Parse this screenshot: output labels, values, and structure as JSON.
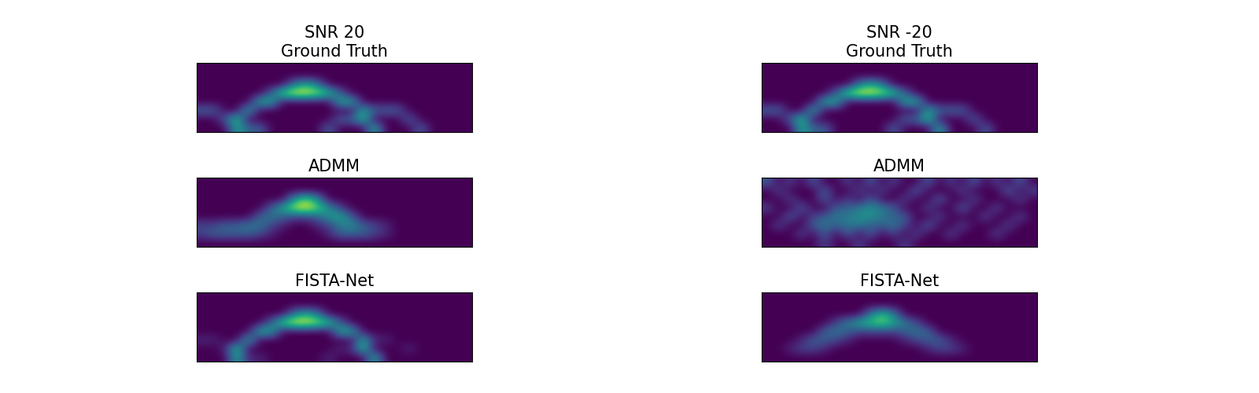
{
  "chart_data": [
    {
      "type": "heatmap",
      "title": "SNR 20\nGround Truth",
      "tick_labels": false,
      "color_range": [
        0,
        1
      ],
      "cells": [
        [
          0,
          0,
          0,
          0,
          0,
          0,
          0,
          0,
          0,
          0,
          0,
          0,
          0,
          0,
          0,
          0,
          0,
          0,
          0,
          0,
          0,
          0,
          0,
          0
        ],
        [
          0,
          0,
          0,
          0,
          0,
          0,
          0,
          0,
          0,
          0,
          0,
          0,
          0,
          0,
          0,
          0,
          0,
          0,
          0,
          0,
          0,
          0,
          0,
          0
        ],
        [
          0,
          0,
          0,
          0,
          0,
          0,
          0,
          0,
          0.4,
          0.6,
          0.4,
          0,
          0,
          0,
          0,
          0,
          0,
          0,
          0,
          0,
          0,
          0,
          0,
          0
        ],
        [
          0,
          0,
          0,
          0,
          0,
          0,
          0.3,
          0.8,
          1,
          1,
          0.9,
          0.7,
          0.3,
          0,
          0,
          0,
          0,
          0,
          0,
          0,
          0,
          0,
          0,
          0
        ],
        [
          0,
          0,
          0,
          0,
          0,
          0.6,
          0.6,
          0,
          0,
          0,
          0,
          0,
          0.6,
          0.6,
          0,
          0,
          0,
          0,
          0,
          0,
          0,
          0,
          0,
          0
        ],
        [
          0.3,
          0.3,
          0,
          0,
          0.6,
          0,
          0,
          0,
          0,
          0,
          0,
          0,
          0,
          0,
          0.6,
          0.3,
          0.3,
          0.3,
          0,
          0,
          0,
          0,
          0,
          0
        ],
        [
          0,
          0,
          0.3,
          0.7,
          0,
          0,
          0,
          0,
          0,
          0,
          0,
          0,
          0.3,
          0.3,
          0.7,
          0,
          0,
          0,
          0.3,
          0,
          0,
          0,
          0,
          0
        ],
        [
          0,
          0,
          0,
          0.6,
          0.3,
          0.3,
          0,
          0,
          0,
          0,
          0,
          0.3,
          0,
          0,
          0,
          0.6,
          0,
          0,
          0,
          0.3,
          0,
          0,
          0,
          0
        ]
      ]
    },
    {
      "type": "heatmap",
      "title": "SNR -20\nGround Truth",
      "tick_labels": false,
      "color_range": [
        0,
        1
      ],
      "cells": [
        [
          0,
          0,
          0,
          0,
          0,
          0,
          0,
          0,
          0,
          0,
          0,
          0,
          0,
          0,
          0,
          0,
          0,
          0,
          0,
          0,
          0,
          0,
          0,
          0
        ],
        [
          0,
          0,
          0,
          0,
          0,
          0,
          0,
          0,
          0,
          0,
          0,
          0,
          0,
          0,
          0,
          0,
          0,
          0,
          0,
          0,
          0,
          0,
          0,
          0
        ],
        [
          0,
          0,
          0,
          0,
          0,
          0,
          0,
          0,
          0.4,
          0.6,
          0.4,
          0,
          0,
          0,
          0,
          0,
          0,
          0,
          0,
          0,
          0,
          0,
          0,
          0
        ],
        [
          0,
          0,
          0,
          0,
          0,
          0,
          0.3,
          0.8,
          1,
          1,
          0.9,
          0.7,
          0.3,
          0,
          0,
          0,
          0,
          0,
          0,
          0,
          0,
          0,
          0,
          0
        ],
        [
          0,
          0,
          0,
          0,
          0,
          0.6,
          0.6,
          0,
          0,
          0,
          0,
          0,
          0.6,
          0.6,
          0,
          0,
          0,
          0,
          0,
          0,
          0,
          0,
          0,
          0
        ],
        [
          0.3,
          0.3,
          0,
          0,
          0.6,
          0,
          0,
          0,
          0,
          0,
          0,
          0,
          0,
          0,
          0.6,
          0.3,
          0.3,
          0.3,
          0,
          0,
          0,
          0,
          0,
          0
        ],
        [
          0,
          0,
          0.3,
          0.7,
          0,
          0,
          0,
          0,
          0,
          0,
          0,
          0,
          0.3,
          0.3,
          0.7,
          0,
          0,
          0,
          0.3,
          0,
          0,
          0,
          0,
          0
        ],
        [
          0,
          0,
          0,
          0.6,
          0.3,
          0.3,
          0,
          0,
          0,
          0,
          0,
          0.3,
          0,
          0,
          0,
          0.6,
          0,
          0,
          0,
          0.3,
          0,
          0,
          0,
          0
        ]
      ]
    },
    {
      "type": "heatmap",
      "title": "ADMM",
      "tick_labels": false,
      "color_range": [
        0,
        1
      ],
      "cells": [
        [
          0,
          0,
          0,
          0,
          0,
          0,
          0,
          0,
          0,
          0,
          0,
          0,
          0,
          0,
          0,
          0,
          0,
          0,
          0,
          0,
          0,
          0,
          0,
          0
        ],
        [
          0,
          0,
          0,
          0,
          0,
          0,
          0,
          0,
          0,
          0,
          0,
          0,
          0,
          0,
          0,
          0,
          0,
          0,
          0,
          0,
          0,
          0,
          0,
          0
        ],
        [
          0,
          0,
          0,
          0,
          0,
          0,
          0,
          0,
          0.5,
          0.8,
          0.5,
          0,
          0,
          0,
          0,
          0,
          0,
          0,
          0,
          0,
          0,
          0,
          0,
          0
        ],
        [
          0,
          0,
          0,
          0,
          0,
          0,
          0.3,
          0.6,
          0.9,
          1,
          0.8,
          0.5,
          0.2,
          0,
          0,
          0,
          0,
          0,
          0,
          0,
          0,
          0,
          0,
          0
        ],
        [
          0,
          0,
          0,
          0,
          0,
          0.3,
          0.4,
          0.3,
          0.2,
          0.2,
          0.3,
          0.5,
          0.6,
          0.3,
          0,
          0,
          0,
          0,
          0,
          0,
          0,
          0,
          0,
          0
        ],
        [
          0.2,
          0.2,
          0.3,
          0.3,
          0.4,
          0.4,
          0.2,
          0.1,
          0,
          0,
          0.1,
          0.2,
          0.4,
          0.5,
          0.3,
          0.2,
          0.1,
          0,
          0,
          0,
          0,
          0,
          0,
          0
        ],
        [
          0.2,
          0.3,
          0.3,
          0.3,
          0.3,
          0.2,
          0.1,
          0,
          0,
          0,
          0,
          0.1,
          0.3,
          0.3,
          0.3,
          0.2,
          0.1,
          0,
          0,
          0,
          0,
          0,
          0,
          0
        ],
        [
          0,
          0,
          0,
          0,
          0,
          0,
          0,
          0,
          0,
          0,
          0,
          0,
          0,
          0,
          0,
          0,
          0,
          0,
          0,
          0,
          0,
          0,
          0,
          0
        ]
      ]
    },
    {
      "type": "heatmap",
      "title": "ADMM",
      "tick_labels": false,
      "color_range": [
        0,
        1
      ],
      "cells": [
        [
          0.3,
          0,
          0.2,
          0,
          0.3,
          0,
          0,
          0.2,
          0,
          0.3,
          0,
          0.2,
          0,
          0,
          0.3,
          0,
          0.2,
          0,
          0.3,
          0,
          0.2,
          0,
          0.3,
          0
        ],
        [
          0,
          0.2,
          0,
          0,
          0,
          0.3,
          0,
          0,
          0.2,
          0,
          0.2,
          0,
          0,
          0.3,
          0,
          0,
          0,
          0.2,
          0,
          0,
          0,
          0.3,
          0,
          0.2
        ],
        [
          0,
          0,
          0.2,
          0,
          0,
          0.3,
          0,
          0.2,
          0,
          0.3,
          0,
          0,
          0.2,
          0,
          0,
          0.3,
          0,
          0,
          0.2,
          0,
          0,
          0,
          0.2,
          0
        ],
        [
          0.2,
          0,
          0,
          0.3,
          0,
          0,
          0.3,
          0.3,
          0.4,
          0.5,
          0.4,
          0.3,
          0,
          0,
          0.2,
          0,
          0,
          0.3,
          0,
          0,
          0.2,
          0,
          0,
          0
        ],
        [
          0,
          0,
          0.3,
          0,
          0.2,
          0.3,
          0.4,
          0.4,
          0.5,
          0.5,
          0.4,
          0.3,
          0.3,
          0,
          0,
          0.2,
          0,
          0,
          0,
          0.2,
          0,
          0,
          0.2,
          0
        ],
        [
          0,
          0.2,
          0,
          0,
          0.3,
          0.4,
          0.3,
          0.4,
          0.4,
          0.3,
          0.3,
          0.4,
          0.2,
          0,
          0.3,
          0,
          0,
          0.2,
          0,
          0,
          0,
          0.2,
          0,
          0
        ],
        [
          0,
          0,
          0,
          0.2,
          0,
          0.3,
          0,
          0.3,
          0,
          0.3,
          0,
          0.2,
          0,
          0.2,
          0,
          0,
          0.2,
          0,
          0,
          0,
          0.2,
          0,
          0,
          0
        ],
        [
          0,
          0,
          0,
          0,
          0,
          0.2,
          0,
          0,
          0.2,
          0,
          0,
          0,
          0.2,
          0,
          0,
          0,
          0,
          0,
          0,
          0,
          0,
          0,
          0,
          0
        ]
      ]
    },
    {
      "type": "heatmap",
      "title": "FISTA-Net",
      "tick_labels": false,
      "color_range": [
        0,
        1
      ],
      "cells": [
        [
          0,
          0,
          0,
          0,
          0,
          0,
          0,
          0,
          0,
          0,
          0,
          0,
          0,
          0,
          0,
          0,
          0,
          0,
          0,
          0,
          0,
          0,
          0,
          0
        ],
        [
          0,
          0,
          0,
          0,
          0,
          0,
          0,
          0,
          0,
          0,
          0,
          0,
          0,
          0,
          0,
          0,
          0,
          0,
          0,
          0,
          0,
          0,
          0,
          0
        ],
        [
          0,
          0,
          0,
          0,
          0,
          0,
          0,
          0,
          0.4,
          0.6,
          0.4,
          0,
          0,
          0,
          0,
          0,
          0,
          0,
          0,
          0,
          0,
          0,
          0,
          0
        ],
        [
          0,
          0,
          0,
          0,
          0,
          0,
          0.3,
          0.8,
          1,
          1,
          0.9,
          0.7,
          0.3,
          0,
          0,
          0,
          0,
          0,
          0,
          0,
          0,
          0,
          0,
          0
        ],
        [
          0,
          0,
          0,
          0,
          0,
          0.6,
          0.6,
          0,
          0,
          0,
          0,
          0,
          0.6,
          0.6,
          0,
          0,
          0,
          0,
          0,
          0,
          0,
          0,
          0,
          0
        ],
        [
          0.1,
          0.1,
          0,
          0,
          0.6,
          0,
          0,
          0,
          0,
          0,
          0,
          0,
          0,
          0,
          0.6,
          0.1,
          0.1,
          0,
          0,
          0,
          0,
          0,
          0,
          0
        ],
        [
          0,
          0,
          0.1,
          0.7,
          0,
          0,
          0,
          0,
          0,
          0,
          0,
          0,
          0.1,
          0.1,
          0.7,
          0,
          0,
          0,
          0.1,
          0,
          0,
          0,
          0,
          0
        ],
        [
          0,
          0,
          0,
          0.6,
          0.1,
          0.1,
          0,
          0,
          0,
          0,
          0,
          0.1,
          0,
          0,
          0,
          0.6,
          0,
          0,
          0,
          0,
          0,
          0,
          0,
          0
        ]
      ]
    },
    {
      "type": "heatmap",
      "title": "FISTA-Net",
      "tick_labels": false,
      "color_range": [
        0,
        1
      ],
      "cells": [
        [
          0,
          0,
          0,
          0,
          0,
          0,
          0,
          0,
          0,
          0,
          0,
          0,
          0,
          0,
          0,
          0,
          0,
          0,
          0,
          0,
          0,
          0,
          0,
          0
        ],
        [
          0,
          0,
          0,
          0,
          0,
          0,
          0,
          0,
          0,
          0,
          0,
          0,
          0,
          0,
          0,
          0,
          0,
          0,
          0,
          0,
          0,
          0,
          0,
          0
        ],
        [
          0,
          0,
          0,
          0,
          0,
          0,
          0,
          0,
          0,
          0.4,
          0.7,
          0.4,
          0,
          0,
          0,
          0,
          0,
          0,
          0,
          0,
          0,
          0,
          0,
          0
        ],
        [
          0,
          0,
          0,
          0,
          0,
          0,
          0.2,
          0.4,
          0.6,
          0.7,
          0.8,
          0.6,
          0.4,
          0.2,
          0,
          0,
          0,
          0,
          0,
          0,
          0,
          0,
          0,
          0
        ],
        [
          0,
          0,
          0,
          0,
          0,
          0.3,
          0.4,
          0.3,
          0.2,
          0.2,
          0.2,
          0.2,
          0.3,
          0.4,
          0.3,
          0,
          0,
          0,
          0,
          0,
          0,
          0,
          0,
          0
        ],
        [
          0,
          0,
          0,
          0.1,
          0.3,
          0.3,
          0.2,
          0.1,
          0,
          0,
          0,
          0,
          0.1,
          0.2,
          0.3,
          0.3,
          0.1,
          0,
          0,
          0,
          0,
          0,
          0,
          0
        ],
        [
          0,
          0,
          0.1,
          0.2,
          0.2,
          0.1,
          0,
          0,
          0,
          0,
          0,
          0,
          0,
          0,
          0.1,
          0.2,
          0.2,
          0.1,
          0,
          0,
          0,
          0,
          0,
          0
        ],
        [
          0,
          0,
          0,
          0,
          0,
          0,
          0,
          0,
          0,
          0,
          0,
          0,
          0,
          0,
          0,
          0,
          0,
          0,
          0,
          0,
          0,
          0,
          0,
          0
        ]
      ]
    }
  ]
}
